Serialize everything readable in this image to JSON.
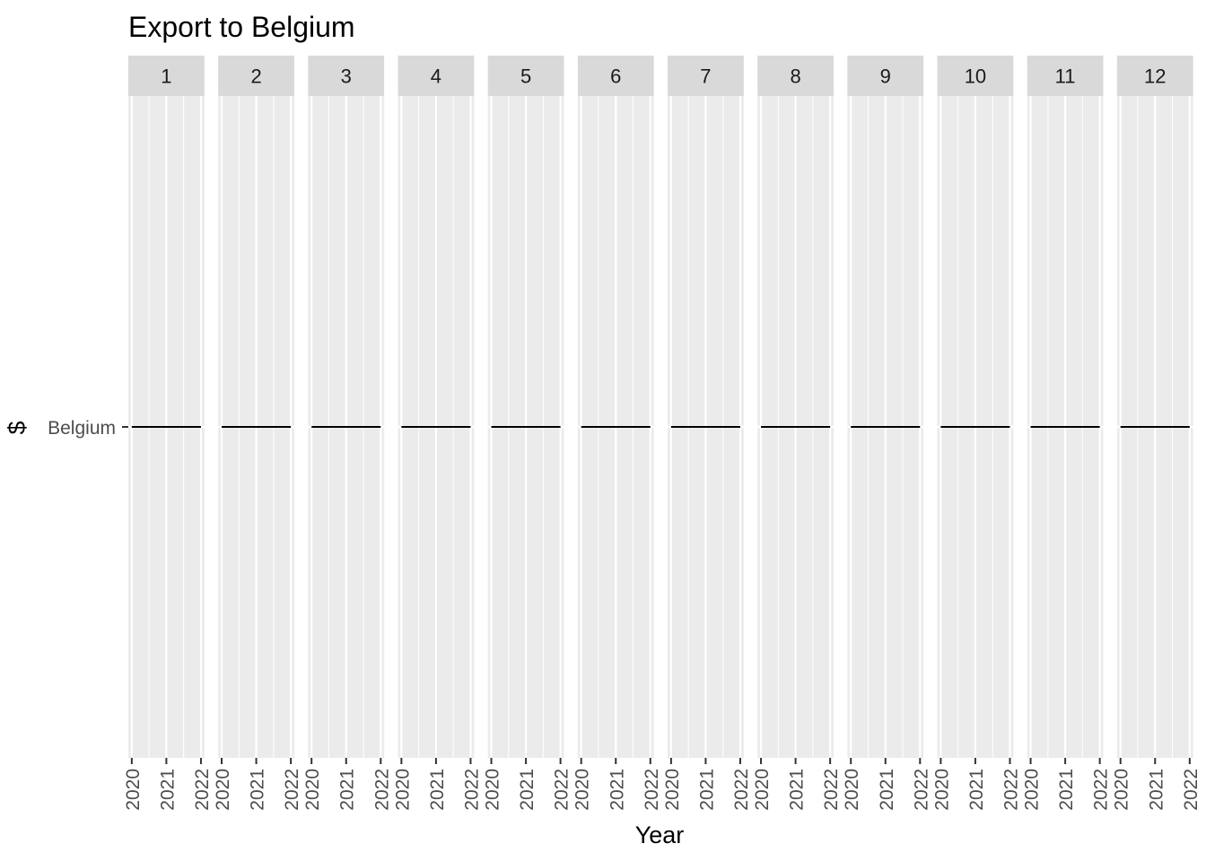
{
  "chart_data": {
    "type": "line",
    "title": "Export to Belgium",
    "xlabel": "Year",
    "ylabel": "$",
    "facet_variable": "month",
    "facets": [
      "1",
      "2",
      "3",
      "4",
      "5",
      "6",
      "7",
      "8",
      "9",
      "10",
      "11",
      "12"
    ],
    "x_ticks": [
      "2020",
      "2021",
      "2022"
    ],
    "xlim": [
      2020,
      2022
    ],
    "y_categories": [
      "Belgium"
    ],
    "series": [
      {
        "values_by_facet": [
          [
            {
              "x": 2020,
              "y": "Belgium"
            },
            {
              "x": 2022,
              "y": "Belgium"
            }
          ],
          [
            {
              "x": 2020,
              "y": "Belgium"
            },
            {
              "x": 2022,
              "y": "Belgium"
            }
          ],
          [
            {
              "x": 2020,
              "y": "Belgium"
            },
            {
              "x": 2022,
              "y": "Belgium"
            }
          ],
          [
            {
              "x": 2020,
              "y": "Belgium"
            },
            {
              "x": 2022,
              "y": "Belgium"
            }
          ],
          [
            {
              "x": 2020,
              "y": "Belgium"
            },
            {
              "x": 2022,
              "y": "Belgium"
            }
          ],
          [
            {
              "x": 2020,
              "y": "Belgium"
            },
            {
              "x": 2022,
              "y": "Belgium"
            }
          ],
          [
            {
              "x": 2020,
              "y": "Belgium"
            },
            {
              "x": 2022,
              "y": "Belgium"
            }
          ],
          [
            {
              "x": 2020,
              "y": "Belgium"
            },
            {
              "x": 2022,
              "y": "Belgium"
            }
          ],
          [
            {
              "x": 2020,
              "y": "Belgium"
            },
            {
              "x": 2022,
              "y": "Belgium"
            }
          ],
          [
            {
              "x": 2020,
              "y": "Belgium"
            },
            {
              "x": 2022,
              "y": "Belgium"
            }
          ],
          [
            {
              "x": 2020,
              "y": "Belgium"
            },
            {
              "x": 2022,
              "y": "Belgium"
            }
          ],
          [
            {
              "x": 2020,
              "y": "Belgium"
            },
            {
              "x": 2022,
              "y": "Belgium"
            }
          ]
        ]
      }
    ],
    "grid": true,
    "legend": "none",
    "colors": {
      "panel_background": "#ebebeb",
      "strip_background": "#d9d9d9",
      "grid_line": "#ffffff",
      "series_line": "#000000",
      "tick_mark": "#333333"
    }
  }
}
